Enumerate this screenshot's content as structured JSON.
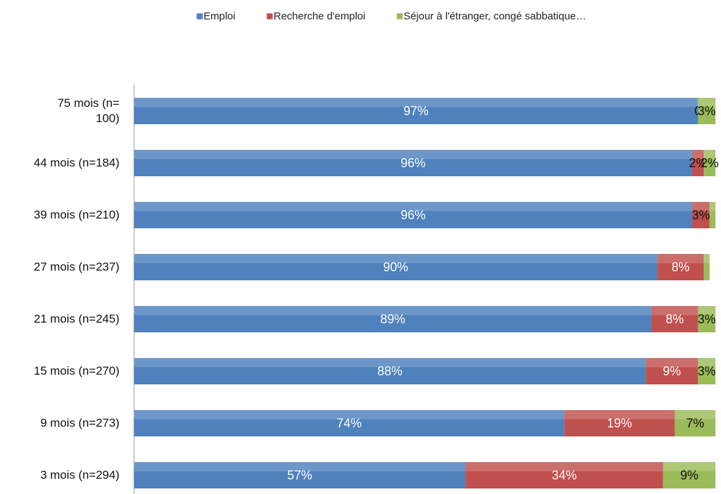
{
  "chart_data": {
    "type": "stacked-bar-horizontal",
    "categories": [
      "75 mois (n=\n100)",
      "44 mois (n=184)",
      "39 mois (n=210)",
      "27 mois (n=237)",
      "21 mois (n=245)",
      "15 mois (n=270)",
      "9 mois (n=273)",
      "3 mois (n=294)"
    ],
    "series": [
      {
        "name": "Emploi",
        "color": "#4f81bd",
        "values": [
          97,
          96,
          96,
          90,
          89,
          88,
          74,
          57
        ],
        "value_labels": [
          "97%",
          "96%",
          "96%",
          "90%",
          "89%",
          "88%",
          "74%",
          "57%"
        ]
      },
      {
        "name": "Recherche d'emploi",
        "color": "#c0504d",
        "values": [
          0,
          2,
          3,
          8,
          8,
          9,
          19,
          34
        ],
        "value_labels": [
          "0",
          "2%",
          "3%",
          "8%",
          "8%",
          "9%",
          "19%",
          "34%"
        ]
      },
      {
        "name": "Séjour à l'étranger, congé sabbatique…",
        "color": "#9bbb59",
        "values": [
          3,
          2,
          1,
          1,
          3,
          3,
          7,
          9
        ],
        "value_labels": [
          "3%",
          "2%",
          null,
          null,
          "3%",
          "3%",
          "7%",
          "9%"
        ]
      }
    ],
    "xlim": [
      0,
      100
    ],
    "legend": "top"
  }
}
